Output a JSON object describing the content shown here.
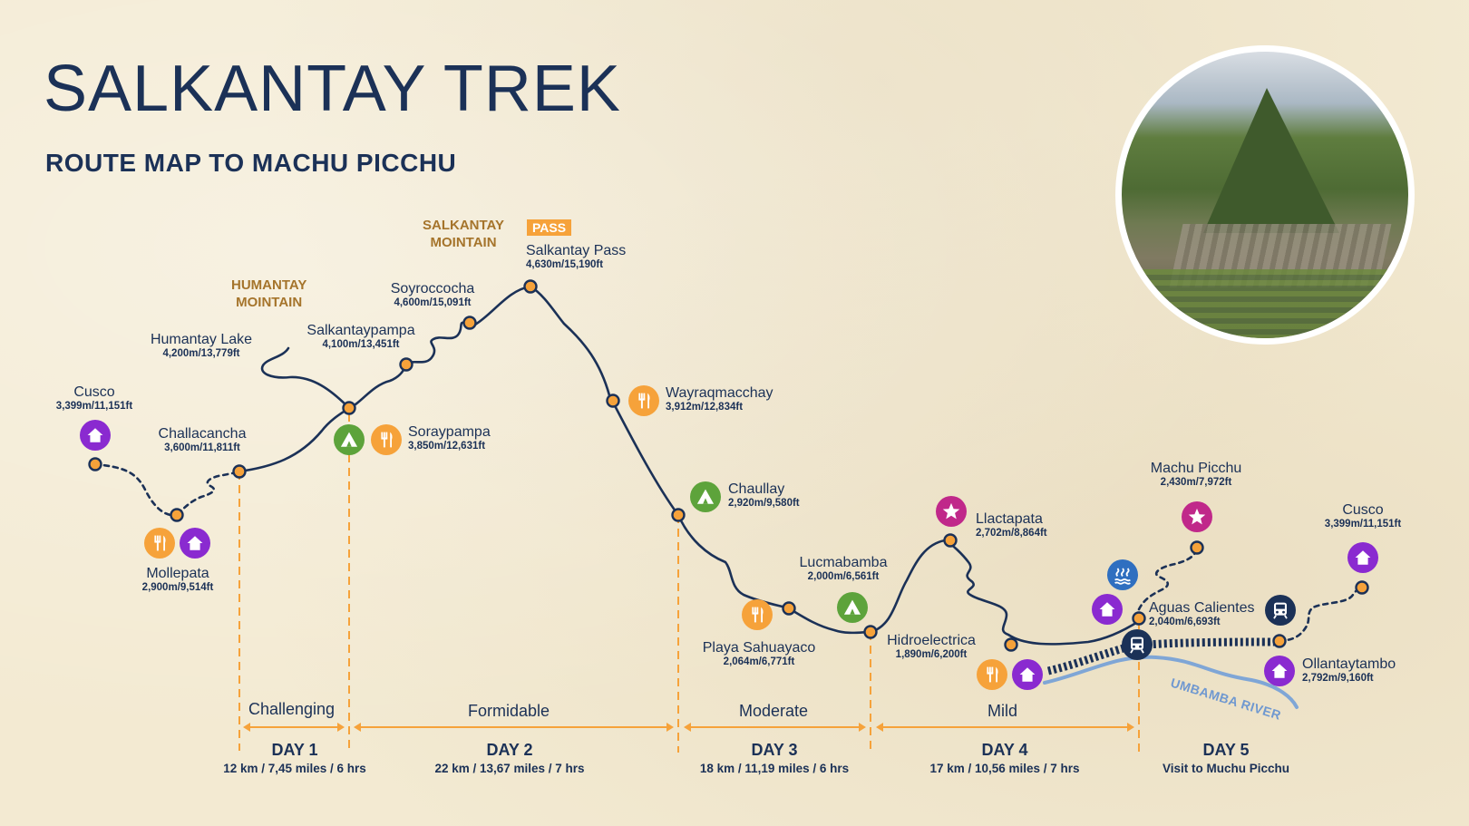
{
  "header": {
    "title": "SALKANTAY TREK",
    "subtitle": "ROUTE MAP TO MACHU PICCHU"
  },
  "mountains": {
    "humantay": [
      "HUMANTAY",
      "MOINTAIN"
    ],
    "salkantay": [
      "SALKANTAY",
      "MOINTAIN"
    ],
    "pass_badge": "PASS"
  },
  "places": {
    "cusco_start": {
      "name": "Cusco",
      "elev": "3,399m/11,151ft"
    },
    "mollepata": {
      "name": "Mollepata",
      "elev": "2,900m/9,514ft"
    },
    "challacancha": {
      "name": "Challacancha",
      "elev": "3,600m/11,811ft"
    },
    "humantay_lake": {
      "name": "Humantay Lake",
      "elev": "4,200m/13,779ft"
    },
    "salkantaypampa": {
      "name": "Salkantaypampa",
      "elev": "4,100m/13,451ft"
    },
    "soraypampa": {
      "name": "Soraypampa",
      "elev": "3,850m/12,631ft"
    },
    "soyroccocha": {
      "name": "Soyroccocha",
      "elev": "4,600m/15,091ft"
    },
    "salkantay_pass": {
      "name": "Salkantay Pass",
      "elev": "4,630m/15,190ft"
    },
    "wayraqmacchay": {
      "name": "Wayraqmacchay",
      "elev": "3,912m/12,834ft"
    },
    "chaullay": {
      "name": "Chaullay",
      "elev": "2,920m/9,580ft"
    },
    "playa_sahuayaco": {
      "name": "Playa Sahuayaco",
      "elev": "2,064m/6,771ft"
    },
    "lucmabamba": {
      "name": "Lucmabamba",
      "elev": "2,000m/6,561ft"
    },
    "hidroelectrica": {
      "name": "Hidroelectrica",
      "elev": "1,890m/6,200ft"
    },
    "llactapata": {
      "name": "Llactapata",
      "elev": "2,702m/8,864ft"
    },
    "machu_picchu": {
      "name": "Machu Picchu",
      "elev": "2,430m/7,972ft"
    },
    "aguas_calientes": {
      "name": "Aguas Calientes",
      "elev": "2,040m/6,693ft"
    },
    "cusco_end": {
      "name": "Cusco",
      "elev": "3,399m/11,151ft"
    },
    "ollantaytambo": {
      "name": "Ollantaytambo",
      "elev": "2,792m/9,160ft"
    }
  },
  "river": "UMBAMBA RIVER",
  "difficulty": [
    "Challenging",
    "Formidable",
    "Moderate",
    "Mild"
  ],
  "days": [
    {
      "label": "DAY 1",
      "info": "12 km / 7,45 miles / 6 hrs"
    },
    {
      "label": "DAY 2",
      "info": "22 km / 13,67 miles / 7 hrs"
    },
    {
      "label": "DAY 3",
      "info": "18 km / 11,19 miles / 6 hrs"
    },
    {
      "label": "DAY 4",
      "info": "17 km / 10,56 miles / 7 hrs"
    },
    {
      "label": "DAY 5",
      "info": "Visit to Muchu Picchu"
    }
  ],
  "colors": {
    "navy": "#1b3157",
    "orange": "#f6a23a",
    "green": "#5da33b",
    "purple": "#8a2ad0",
    "magenta": "#c0288a",
    "blue": "#2f6fc0",
    "river": "#7fa6d6",
    "mountain_label": "#a5742b"
  },
  "icons": {
    "lodge": "house-icon",
    "camp": "tent-icon",
    "meal": "fork-knife-icon",
    "attraction": "star-icon",
    "hot_springs": "hot-springs-icon",
    "train": "train-icon"
  }
}
